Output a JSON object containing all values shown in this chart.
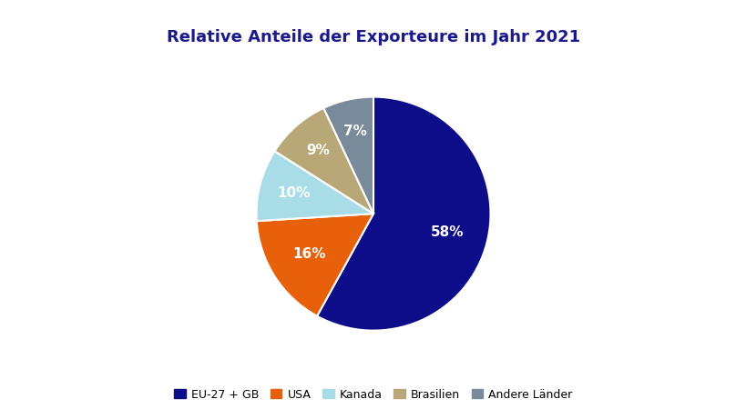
{
  "title": "Relative Anteile der Exporteure im Jahr 2021",
  "title_color": "#1a1a8c",
  "title_fontsize": 13,
  "labels": [
    "EU-27 + GB",
    "USA",
    "Kanada",
    "Brasilien",
    "Andere Länder"
  ],
  "values": [
    58,
    16,
    10,
    9,
    7
  ],
  "colors": [
    "#0d0d8a",
    "#e8600a",
    "#a8dde8",
    "#b8a878",
    "#7a8a9a"
  ],
  "pct_labels": [
    "58%",
    "16%",
    "10%",
    "9%",
    "7%"
  ],
  "pct_label_color": "#ffffff",
  "pct_fontsize": 11,
  "legend_labels": [
    "EU-27 + GB",
    "USA",
    "Kanada",
    "Brasilien",
    "Andere Länder"
  ],
  "background_color": "#ffffff",
  "startangle": 90,
  "counterclock": false,
  "label_radii": [
    0.65,
    0.65,
    0.7,
    0.72,
    0.72
  ]
}
